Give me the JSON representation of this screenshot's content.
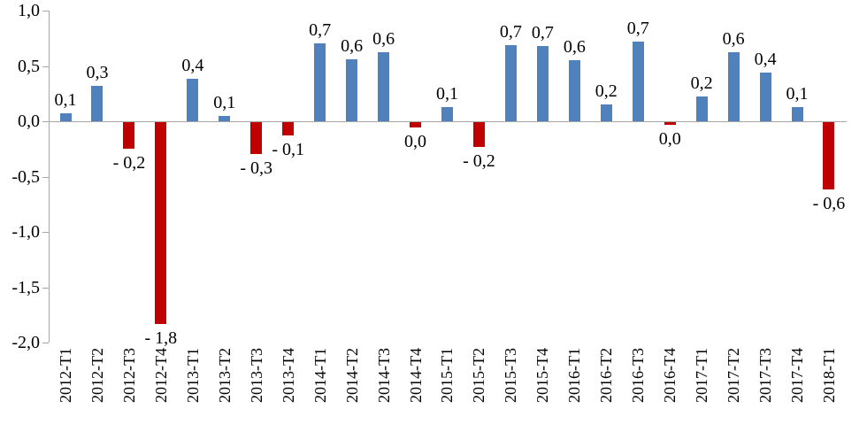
{
  "chart_data": {
    "type": "bar",
    "title": "",
    "xlabel": "",
    "ylabel": "",
    "ylim": [
      -2.0,
      1.0
    ],
    "y_tick_step": 0.5,
    "grid": false,
    "legend": false,
    "decimal_style": "comma",
    "positive_color": "#4f81bd",
    "negative_color": "#c00000",
    "axis_color": "#a6a6a6",
    "text_color": "#000000",
    "categories": [
      "2012-T1",
      "2012-T2",
      "2012-T3",
      "2012-T4",
      "2013-T1",
      "2013-T2",
      "2013-T3",
      "2013-T4",
      "2014-T1",
      "2014-T2",
      "2014-T3",
      "2014-T4",
      "2015-T1",
      "2015-T2",
      "2015-T3",
      "2015-T4",
      "2016-T1",
      "2016-T2",
      "2016-T3",
      "2016-T4",
      "2017-T1",
      "2017-T2",
      "2017-T3",
      "2017-T4",
      "2018-T1"
    ],
    "values": [
      0.07,
      0.32,
      -0.24,
      -1.82,
      0.38,
      0.05,
      -0.29,
      -0.12,
      0.7,
      0.56,
      0.62,
      -0.05,
      0.13,
      -0.22,
      0.69,
      0.68,
      0.55,
      0.15,
      0.72,
      -0.02,
      0.22,
      0.62,
      0.44,
      0.13,
      -0.61
    ],
    "labels": [
      "0,1",
      "0,3",
      "- 0,2",
      "- 1,8",
      "0,4",
      "0,1",
      "- 0,3",
      "- 0,1",
      "0,7",
      "0,6",
      "0,6",
      "0,0",
      "0,1",
      "- 0,2",
      "0,7",
      "0,7",
      "0,6",
      "0,2",
      "0,7",
      "0,0",
      "0,2",
      "0,6",
      "0,4",
      "0,1",
      "- 0,6"
    ],
    "y_ticks": [
      {
        "value": 1.0,
        "label": "1,0"
      },
      {
        "value": 0.5,
        "label": "0,5"
      },
      {
        "value": 0.0,
        "label": "0,0"
      },
      {
        "value": -0.5,
        "label": "-0,5"
      },
      {
        "value": -1.0,
        "label": "-1,0"
      },
      {
        "value": -1.5,
        "label": "-1,5"
      },
      {
        "value": -2.0,
        "label": "-2,0"
      }
    ]
  }
}
